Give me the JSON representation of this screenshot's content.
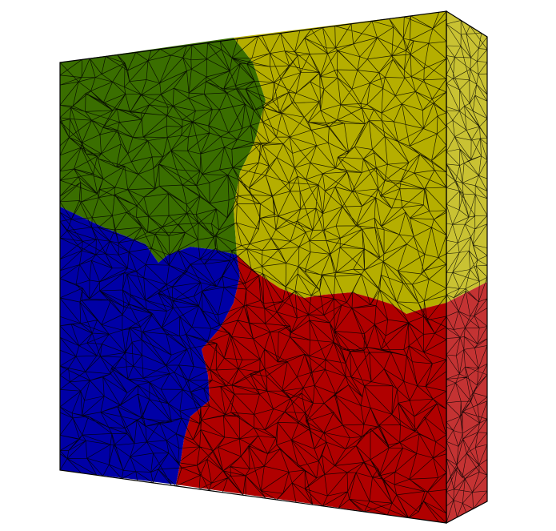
{
  "scene": {
    "subject": "partitioned-tetrahedral-mesh-slab",
    "partitions": [
      {
        "id": "green",
        "color": "#3a6e00"
      },
      {
        "id": "yellow",
        "color": "#b5ae00"
      },
      {
        "id": "blue",
        "color": "#0000a6"
      },
      {
        "id": "red",
        "color": "#b00000"
      }
    ],
    "side_colors": {
      "yellow": "#c9c233",
      "red": "#c43333"
    },
    "mesh_line_color": "#000000",
    "background": "#ffffff"
  }
}
